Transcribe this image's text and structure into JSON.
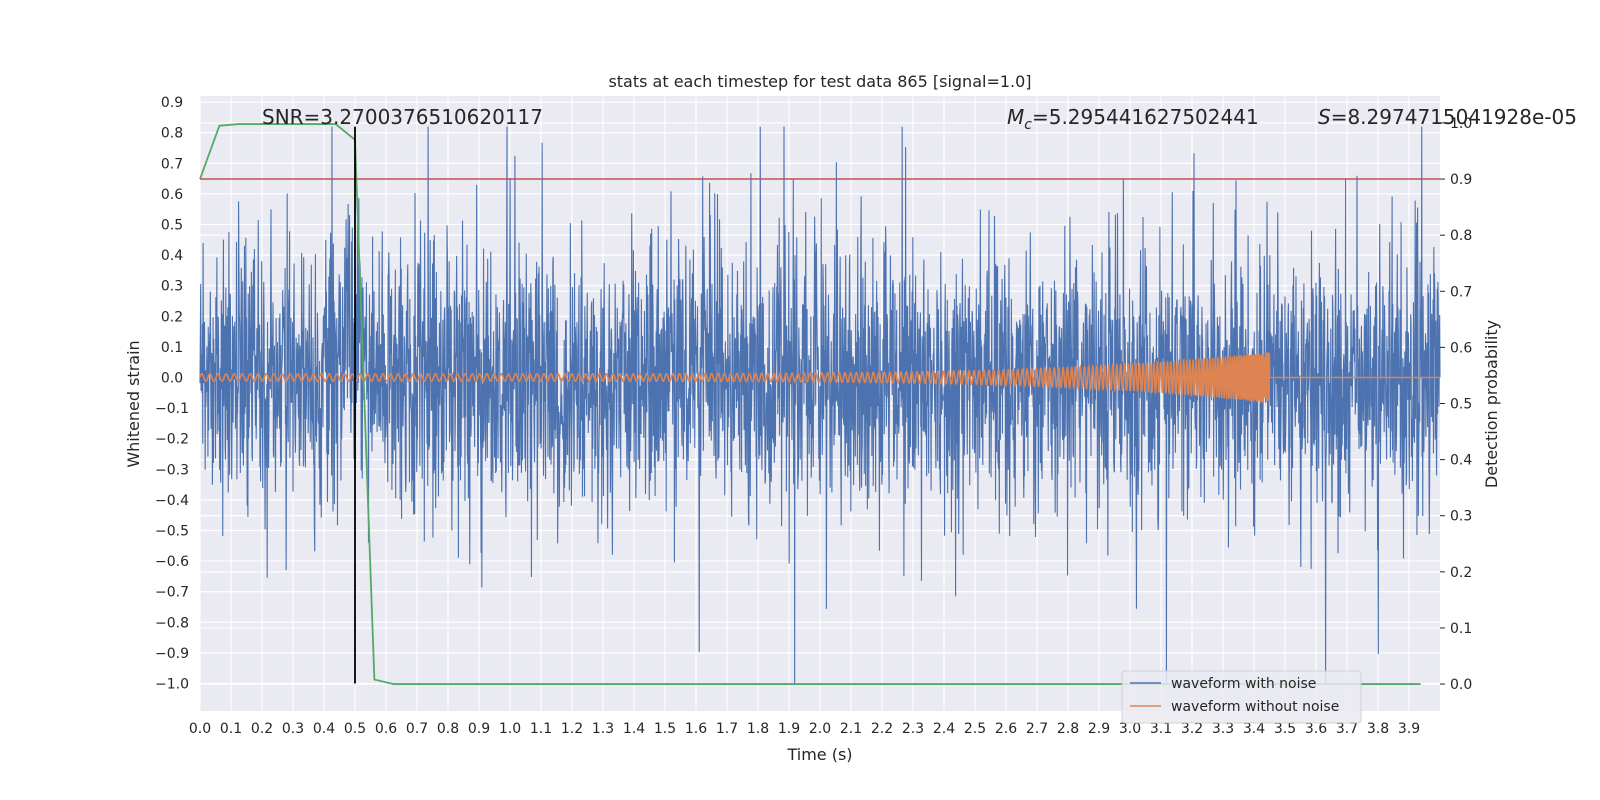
{
  "chart_data": {
    "type": "line",
    "title": "stats at each timestep for test data 865 [signal=1.0]",
    "xlabel": "Time (s)",
    "ylabel": "Whitened strain",
    "y2label": "Detection probability",
    "xlim": [
      0.0,
      4.0
    ],
    "ylim": [
      -1.09,
      0.92
    ],
    "y2lim": [
      -0.048,
      1.048
    ],
    "x_ticks": [
      0.0,
      0.1,
      0.2,
      0.3,
      0.4,
      0.5,
      0.6,
      0.7,
      0.8,
      0.9,
      1.0,
      1.1,
      1.2,
      1.3,
      1.4,
      1.5,
      1.6,
      1.7,
      1.8,
      1.9,
      2.0,
      2.1,
      2.2,
      2.3,
      2.4,
      2.5,
      2.6,
      2.7,
      2.8,
      2.9,
      3.0,
      3.1,
      3.2,
      3.3,
      3.4,
      3.5,
      3.6,
      3.7,
      3.8,
      3.9
    ],
    "x_tick_labels": [
      "0.0",
      "0.1",
      "0.2",
      "0.3",
      "0.4",
      "0.5",
      "0.6",
      "0.7",
      "0.8",
      "0.9",
      "1.0",
      "1.1",
      "1.2",
      "1.3",
      "1.4",
      "1.5",
      "1.6",
      "1.7",
      "1.8",
      "1.9",
      "2.0",
      "2.1",
      "2.2",
      "2.3",
      "2.4",
      "2.5",
      "2.6",
      "2.7",
      "2.8",
      "2.9",
      "3.0",
      "3.1",
      "3.2",
      "3.3",
      "3.4",
      "3.5",
      "3.6",
      "3.7",
      "3.8",
      "3.9"
    ],
    "y_ticks": [
      0.9,
      0.8,
      0.7,
      0.6,
      0.5,
      0.4,
      0.3,
      0.2,
      0.1,
      0.0,
      -0.1,
      -0.2,
      -0.3,
      -0.4,
      -0.5,
      -0.6,
      -0.7,
      -0.8,
      -0.9,
      -1.0
    ],
    "y_tick_labels": [
      "0.9",
      "0.8",
      "0.7",
      "0.6",
      "0.5",
      "0.4",
      "0.3",
      "0.2",
      "0.1",
      "0.0",
      "−0.1",
      "−0.2",
      "−0.3",
      "−0.4",
      "−0.5",
      "−0.6",
      "−0.7",
      "−0.8",
      "−0.9",
      "−1.0"
    ],
    "y2_ticks": [
      1.0,
      0.9,
      0.8,
      0.7,
      0.6,
      0.5,
      0.4,
      0.3,
      0.2,
      0.1,
      0.0
    ],
    "y2_tick_labels": [
      "1.0",
      "0.9",
      "0.8",
      "0.7",
      "0.6",
      "0.5",
      "0.4",
      "0.3",
      "0.2",
      "0.1",
      "0.0"
    ],
    "annotations": {
      "snr": "SNR=3.2700376510620117",
      "mc_symbol": "M",
      "mc_sub": "c",
      "mc_value": "=5.295441627502441",
      "s_symbol": "S",
      "s_value": "=8.2974715041928e-05"
    },
    "legend": {
      "placement": "lower-right",
      "entries": [
        "waveform with noise",
        "waveform without noise"
      ]
    },
    "colors": {
      "noise": "#4c72b0",
      "clean": "#dd8452",
      "probability": "#55a868",
      "threshold": "#c44e52",
      "marker": "#000000",
      "background": "#eaeaf2",
      "grid": "#ffffff"
    },
    "threshold_line": {
      "y2": 0.9
    },
    "marker_line": {
      "x": 0.5,
      "y_from": -1.0,
      "y_to": 0.82
    },
    "series": [
      {
        "name": "waveform with noise",
        "axis": "left",
        "style": "dense-noise",
        "x_range": [
          0.0,
          4.0
        ],
        "typical_amplitude": 0.26,
        "max": 0.82,
        "min": -1.0,
        "seed": 865
      },
      {
        "name": "waveform without noise",
        "axis": "left",
        "style": "chirp",
        "x_range": [
          0.0,
          4.0
        ],
        "merger_time": 3.45,
        "amplitude_start": 0.012,
        "amplitude_peak": 0.085
      },
      {
        "name": "detection probability",
        "axis": "right",
        "x": [
          0.0,
          0.0625,
          0.125,
          0.1875,
          0.25,
          0.3125,
          0.375,
          0.4375,
          0.5,
          0.5625,
          0.625,
          0.6875,
          0.75,
          0.8125,
          0.875,
          0.9375,
          1.0,
          1.0625,
          1.125,
          1.1875,
          1.25,
          1.3125,
          1.375,
          1.4375,
          1.5,
          1.5625,
          1.625,
          1.6875,
          1.75,
          1.8125,
          1.875,
          1.9375,
          2.0,
          2.0625,
          2.125,
          2.1875,
          2.25,
          2.3125,
          2.375,
          2.4375,
          2.5,
          2.5625,
          2.625,
          2.6875,
          2.75,
          2.8125,
          2.875,
          2.9375,
          3.0,
          3.0625,
          3.125,
          3.1875,
          3.25,
          3.3125,
          3.375,
          3.4375,
          3.5,
          3.5625,
          3.625,
          3.6875,
          3.75,
          3.8125,
          3.875,
          3.9375
        ],
        "values": [
          0.9,
          0.995,
          0.998,
          0.998,
          0.998,
          0.998,
          0.998,
          0.998,
          0.97,
          0.008,
          0.0,
          0.0,
          0.0,
          0.0,
          0.0,
          0.0,
          0.0,
          0.0,
          0.0,
          0.0,
          0.0,
          0.0,
          0.0,
          0.0,
          0.0,
          0.0,
          0.0,
          0.0,
          0.0,
          0.0,
          0.0,
          0.0,
          0.0,
          0.0,
          0.0,
          0.0,
          0.0,
          0.0,
          0.0,
          0.0,
          0.0,
          0.0,
          0.0,
          0.0,
          0.0,
          0.0,
          0.0,
          0.0,
          0.0,
          0.0,
          0.0,
          0.0,
          0.0,
          0.0,
          0.0,
          0.0,
          0.0,
          0.0,
          0.0,
          0.0,
          0.0,
          0.0,
          0.0,
          0.0
        ]
      }
    ]
  }
}
